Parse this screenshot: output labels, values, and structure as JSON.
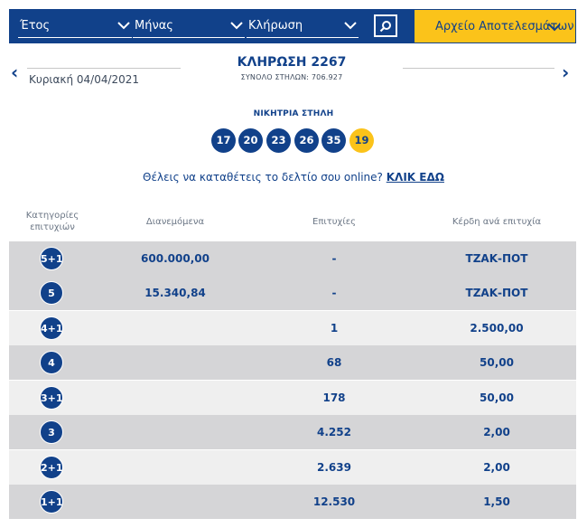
{
  "filters": {
    "year_label": "Έτος",
    "month_label": "Μήνας",
    "draw_label": "Κλήρωση",
    "archive_label": "Αρχείο Αποτελεσμάτων"
  },
  "draw": {
    "date": "Κυριακή 04/04/2021",
    "title": "ΚΛΗΡΩΣΗ 2267",
    "subtitle": "ΣΥΝΟΛΟ ΣΤΗΛΩΝ: 706.927",
    "prev_arrow": "‹",
    "next_arrow": "›"
  },
  "winning": {
    "label": "ΝΙΚΗΤΡΙΑ ΣΤΗΛΗ",
    "numbers": [
      "17",
      "20",
      "23",
      "26",
      "35"
    ],
    "bonus": "19"
  },
  "cta": {
    "text": "Θέλεις να καταθέτεις το δελτίο σου online?",
    "link": "ΚΛΙΚ ΕΔΩ"
  },
  "table": {
    "headers": {
      "category": "Κατηγορίες επιτυχιών",
      "distributed": "Διανεμόμενα",
      "winners": "Επιτυχίες",
      "prize": "Κέρδη ανά επιτυχία"
    },
    "rows": [
      {
        "category": "5+1",
        "distributed": "600.000,00",
        "winners": "-",
        "prize": "ΤΖΑΚ-ΠΟΤ"
      },
      {
        "category": "5",
        "distributed": "15.340,84",
        "winners": "-",
        "prize": "ΤΖΑΚ-ΠΟΤ"
      },
      {
        "category": "4+1",
        "distributed": "",
        "winners": "1",
        "prize": "2.500,00"
      },
      {
        "category": "4",
        "distributed": "",
        "winners": "68",
        "prize": "50,00"
      },
      {
        "category": "3+1",
        "distributed": "",
        "winners": "178",
        "prize": "50,00"
      },
      {
        "category": "3",
        "distributed": "",
        "winners": "4.252",
        "prize": "2,00"
      },
      {
        "category": "2+1",
        "distributed": "",
        "winners": "2.639",
        "prize": "2,00"
      },
      {
        "category": "1+1",
        "distributed": "",
        "winners": "12.530",
        "prize": "1,50"
      }
    ]
  },
  "colors": {
    "brand_blue": "#11418a",
    "accent_yellow": "#fbc31a"
  },
  "icons": [
    "chevron-down-icon",
    "search-icon",
    "chevron-left-icon",
    "chevron-right-icon"
  ]
}
